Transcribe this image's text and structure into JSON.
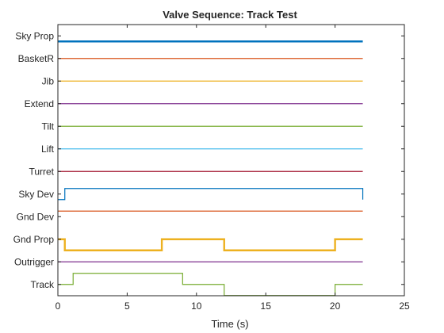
{
  "chart_data": {
    "type": "line",
    "title": "Valve Sequence: Track Test",
    "xlabel": "Time (s)",
    "ylabel": "",
    "xlim": [
      0,
      25
    ],
    "xticks": [
      0,
      5,
      10,
      15,
      20,
      25
    ],
    "ylim": [
      0,
      12
    ],
    "grid": false,
    "legend": "none",
    "categories": [
      "Track",
      "Outrigger",
      "Gnd Prop",
      "Gnd Dev",
      "Sky Dev",
      "Turret",
      "Lift",
      "Tilt",
      "Extend",
      "Jib",
      "BasketR",
      "Sky Prop"
    ],
    "series": [
      {
        "row": 0,
        "color": "#77AC30",
        "width": 1.2,
        "x": [
          0,
          1.1,
          1.1,
          9,
          9,
          12,
          12,
          20,
          20,
          22
        ],
        "y": [
          0,
          0,
          1,
          1,
          0,
          0,
          -1,
          -1,
          0,
          0
        ]
      },
      {
        "row": 1,
        "color": "#7E2F8E",
        "width": 1.2,
        "x": [
          0,
          22
        ],
        "y": [
          0,
          0
        ]
      },
      {
        "row": 2,
        "color": "#EDB120",
        "width": 2.4,
        "x": [
          0,
          0.5,
          0.5,
          7.5,
          7.5,
          12,
          12,
          20,
          20,
          22
        ],
        "y": [
          0,
          0,
          -1,
          -1,
          0,
          0,
          -1,
          -1,
          0,
          0
        ]
      },
      {
        "row": 3,
        "color": "#D95319",
        "width": 1.2,
        "x": [
          0,
          22
        ],
        "y": [
          0.5,
          0.5
        ]
      },
      {
        "row": 4,
        "color": "#0072BD",
        "width": 1.2,
        "x": [
          0,
          0.5,
          0.5,
          22,
          22
        ],
        "y": [
          -0.5,
          -0.5,
          0.5,
          0.5,
          -0.5
        ]
      },
      {
        "row": 5,
        "color": "#A2142F",
        "width": 1.2,
        "x": [
          0,
          22
        ],
        "y": [
          0,
          0
        ]
      },
      {
        "row": 6,
        "color": "#4DBEEE",
        "width": 1.2,
        "x": [
          0,
          22
        ],
        "y": [
          0,
          0
        ]
      },
      {
        "row": 7,
        "color": "#77AC30",
        "width": 1.2,
        "x": [
          0,
          22
        ],
        "y": [
          0,
          0
        ]
      },
      {
        "row": 8,
        "color": "#7E2F8E",
        "width": 1.2,
        "x": [
          0,
          22
        ],
        "y": [
          0,
          0
        ]
      },
      {
        "row": 9,
        "color": "#EDB120",
        "width": 1.2,
        "x": [
          0,
          22
        ],
        "y": [
          0,
          0
        ]
      },
      {
        "row": 10,
        "color": "#D95319",
        "width": 1.2,
        "x": [
          0,
          22
        ],
        "y": [
          0,
          0
        ]
      },
      {
        "row": 11,
        "color": "#0072BD",
        "width": 2.4,
        "x": [
          0,
          22
        ],
        "y": [
          -0.5,
          -0.5
        ]
      }
    ]
  }
}
